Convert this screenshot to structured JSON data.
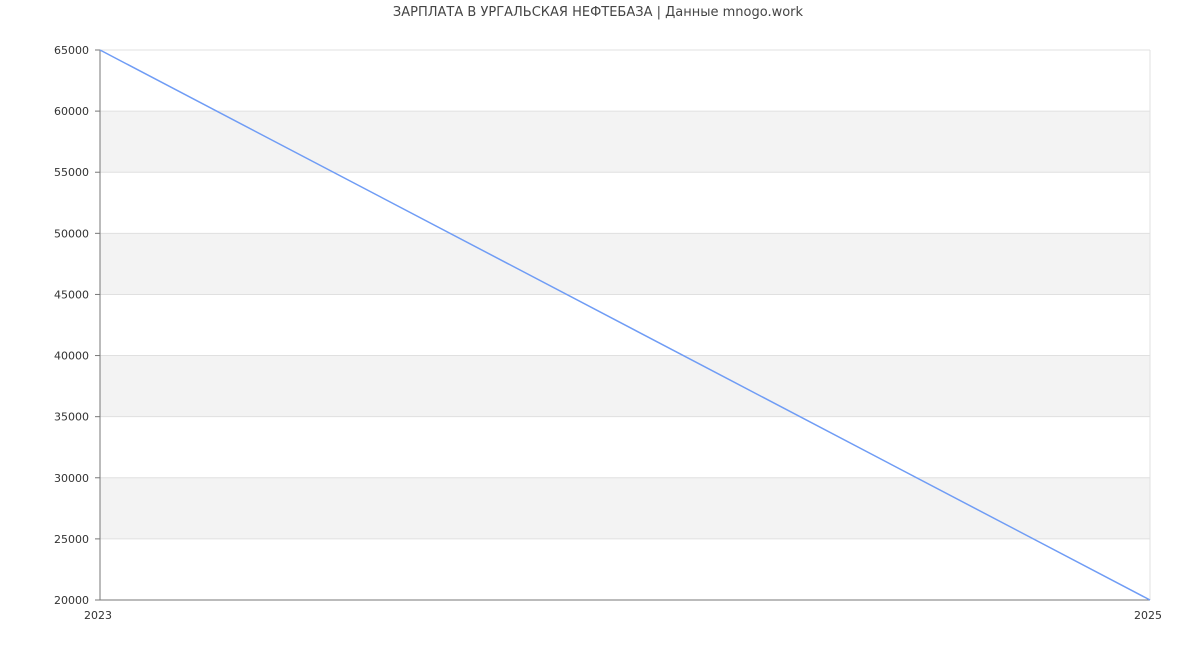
{
  "chart_data": {
    "type": "line",
    "title": "ЗАРПЛАТА В УРГАЛЬСКАЯ НЕФТЕБАЗА | Данные mnogo.work",
    "xlabel": "",
    "ylabel": "",
    "x": [
      2023,
      2025
    ],
    "x_tick_labels": [
      "2023",
      "2025"
    ],
    "series": [
      {
        "values": [
          65000,
          20000
        ],
        "color": "#6f9cf5"
      }
    ],
    "ylim": [
      20000,
      65000
    ],
    "y_ticks": [
      20000,
      25000,
      30000,
      35000,
      40000,
      45000,
      50000,
      55000,
      60000,
      65000
    ],
    "y_tick_labels": [
      "20000",
      "25000",
      "30000",
      "35000",
      "40000",
      "45000",
      "50000",
      "55000",
      "60000",
      "65000"
    ],
    "grid": true,
    "band_color": "#f3f3f3",
    "grid_color": "#e0e0e0",
    "axis_color": "#777777"
  }
}
